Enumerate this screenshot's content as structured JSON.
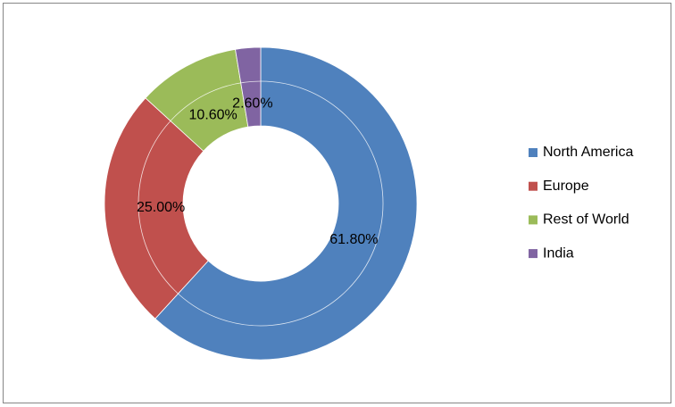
{
  "chart_data": {
    "type": "doughnut",
    "categories": [
      "North America",
      "Europe",
      "Rest of World",
      "India"
    ],
    "values": [
      61.8,
      25.0,
      10.6,
      2.6
    ],
    "value_labels": [
      "61.80%",
      "25.00%",
      "10.60%",
      "2.60%"
    ],
    "colors": [
      "#4f81bd",
      "#c0504d",
      "#9bbb59",
      "#8064a2"
    ],
    "legend": "right"
  }
}
